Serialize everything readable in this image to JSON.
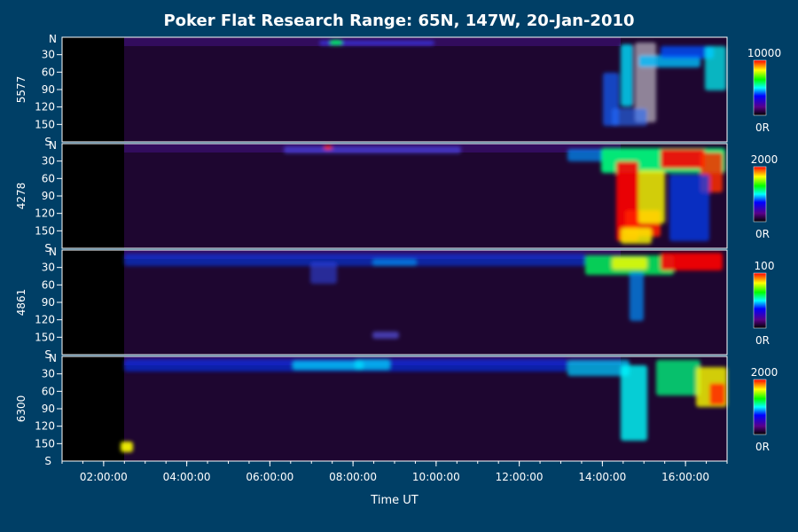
{
  "chart_data": {
    "type": "heatmap",
    "title": "Poker Flat Research Range: 65N, 147W, 20-Jan-2010",
    "xlabel": "Time UT",
    "x_ticks": [
      "02:00:00",
      "04:00:00",
      "06:00:00",
      "08:00:00",
      "10:00:00",
      "12:00:00",
      "14:00:00",
      "16:00:00"
    ],
    "x_range": [
      "01:00:00",
      "17:00:00"
    ],
    "y_axis": {
      "scale_top": "N",
      "scale_bottom": "S",
      "ticks": [
        "30",
        "60",
        "90",
        "120",
        "150"
      ],
      "range": [
        0,
        180
      ]
    },
    "panels": [
      {
        "ylabel": "5577",
        "colorbar_max": "10000",
        "colorbar_min": "0R"
      },
      {
        "ylabel": "4278",
        "colorbar_max": "2000",
        "colorbar_min": "0R"
      },
      {
        "ylabel": "4861",
        "colorbar_max": "100",
        "colorbar_min": "0R"
      },
      {
        "ylabel": "6300",
        "colorbar_max": "2000",
        "colorbar_min": "0R"
      }
    ],
    "colormap": [
      "#000000",
      "#5a0088",
      "#0000ff",
      "#00ffff",
      "#00ff00",
      "#ffff00",
      "#ff0000"
    ],
    "grid": false,
    "legend": "right"
  }
}
